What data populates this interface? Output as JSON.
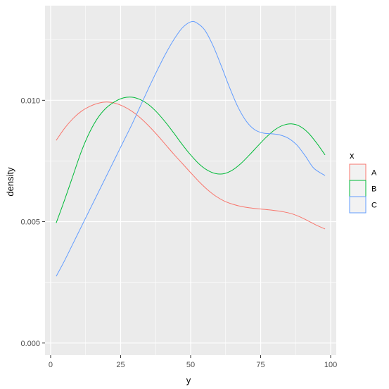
{
  "chart_data": {
    "type": "line",
    "title": "",
    "xlabel": "y",
    "ylabel": "density",
    "xlim": [
      -2,
      102
    ],
    "ylim": [
      -0.0005,
      0.0139
    ],
    "x_ticks": [
      0,
      25,
      50,
      75,
      100
    ],
    "x_tick_labels": [
      "0",
      "25",
      "50",
      "75",
      "100"
    ],
    "y_ticks": [
      0.0,
      0.005,
      0.01
    ],
    "y_tick_labels": [
      "0.000",
      "0.005",
      "0.010"
    ],
    "grid": true,
    "panel_background": "#ebebeb",
    "legend": {
      "title": "x",
      "placement": "right"
    },
    "series": [
      {
        "name": "A",
        "color": "#f8766d",
        "points": [
          [
            2,
            0.00835
          ],
          [
            5,
            0.00885
          ],
          [
            8,
            0.00925
          ],
          [
            11,
            0.00955
          ],
          [
            14,
            0.00975
          ],
          [
            17,
            0.00988
          ],
          [
            20,
            0.00993
          ],
          [
            23,
            0.00988
          ],
          [
            26,
            0.00975
          ],
          [
            29,
            0.00955
          ],
          [
            32,
            0.00928
          ],
          [
            35,
            0.00895
          ],
          [
            38,
            0.00858
          ],
          [
            41,
            0.00818
          ],
          [
            44,
            0.00778
          ],
          [
            47,
            0.0074
          ],
          [
            50,
            0.00702
          ],
          [
            53,
            0.00665
          ],
          [
            56,
            0.00632
          ],
          [
            59,
            0.00605
          ],
          [
            62,
            0.00585
          ],
          [
            65,
            0.00572
          ],
          [
            68,
            0.00563
          ],
          [
            71,
            0.00557
          ],
          [
            74,
            0.00553
          ],
          [
            77,
            0.0055
          ],
          [
            80,
            0.00546
          ],
          [
            83,
            0.00541
          ],
          [
            86,
            0.00533
          ],
          [
            89,
            0.0052
          ],
          [
            92,
            0.00503
          ],
          [
            95,
            0.00485
          ],
          [
            98,
            0.0047
          ]
        ]
      },
      {
        "name": "B",
        "color": "#00ba38",
        "points": [
          [
            2,
            0.00495
          ],
          [
            5,
            0.0059
          ],
          [
            8,
            0.0069
          ],
          [
            11,
            0.0079
          ],
          [
            14,
            0.0087
          ],
          [
            17,
            0.0093
          ],
          [
            20,
            0.0097
          ],
          [
            23,
            0.00995
          ],
          [
            26,
            0.0101
          ],
          [
            29,
            0.01013
          ],
          [
            32,
            0.01003
          ],
          [
            35,
            0.00982
          ],
          [
            38,
            0.0095
          ],
          [
            41,
            0.0091
          ],
          [
            44,
            0.00865
          ],
          [
            47,
            0.00818
          ],
          [
            50,
            0.00775
          ],
          [
            53,
            0.00738
          ],
          [
            56,
            0.00712
          ],
          [
            59,
            0.00698
          ],
          [
            62,
            0.00698
          ],
          [
            65,
            0.00713
          ],
          [
            68,
            0.0074
          ],
          [
            71,
            0.00775
          ],
          [
            74,
            0.00812
          ],
          [
            77,
            0.00848
          ],
          [
            80,
            0.00878
          ],
          [
            83,
            0.00897
          ],
          [
            86,
            0.00903
          ],
          [
            89,
            0.00893
          ],
          [
            92,
            0.00866
          ],
          [
            95,
            0.00824
          ],
          [
            98,
            0.00775
          ]
        ]
      },
      {
        "name": "C",
        "color": "#619cff",
        "points": [
          [
            2,
            0.00275
          ],
          [
            5,
            0.0034
          ],
          [
            8,
            0.0041
          ],
          [
            11,
            0.0048
          ],
          [
            14,
            0.0055
          ],
          [
            17,
            0.0062
          ],
          [
            20,
            0.0069
          ],
          [
            23,
            0.0076
          ],
          [
            26,
            0.0083
          ],
          [
            29,
            0.009
          ],
          [
            32,
            0.00975
          ],
          [
            35,
            0.0105
          ],
          [
            38,
            0.01122
          ],
          [
            41,
            0.0119
          ],
          [
            44,
            0.0125
          ],
          [
            47,
            0.01298
          ],
          [
            50,
            0.01323
          ],
          [
            52,
            0.0132
          ],
          [
            55,
            0.0129
          ],
          [
            58,
            0.01225
          ],
          [
            61,
            0.0114
          ],
          [
            64,
            0.0105
          ],
          [
            67,
            0.0097
          ],
          [
            70,
            0.00912
          ],
          [
            73,
            0.00878
          ],
          [
            76,
            0.00865
          ],
          [
            79,
            0.00862
          ],
          [
            82,
            0.00857
          ],
          [
            85,
            0.00843
          ],
          [
            88,
            0.00815
          ],
          [
            91,
            0.0077
          ],
          [
            94,
            0.0072
          ],
          [
            98,
            0.0069
          ]
        ]
      }
    ]
  }
}
